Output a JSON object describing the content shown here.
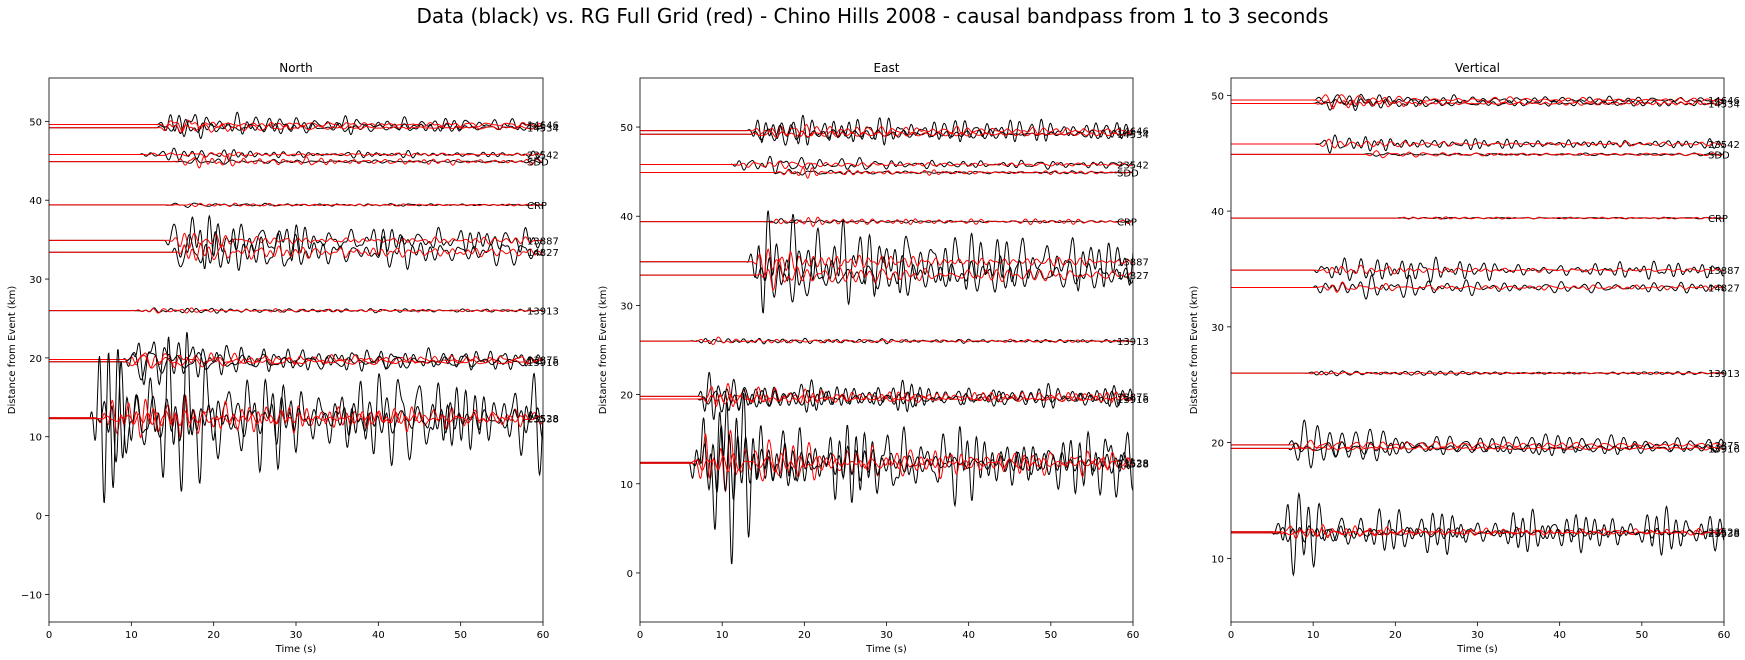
{
  "suptitle": "Data (black) vs. RG Full Grid (red) - Chino Hills 2008 - causal bandpass from 1 to 3 seconds",
  "colors": {
    "data": "#000000",
    "synthetic": "#ff0000",
    "axis": "#000000"
  },
  "chart_data": [
    {
      "type": "line",
      "title": "North",
      "xlabel": "Time (s)",
      "ylabel": "Distance from Event (km)",
      "xlim": [
        0,
        60
      ],
      "ylim": [
        -13.5,
        55.5
      ],
      "xticks": [
        0,
        10,
        20,
        30,
        40,
        50,
        60
      ],
      "yticks": [
        -10,
        0,
        10,
        20,
        30,
        40,
        50
      ],
      "traces": [
        {
          "label": "14646",
          "offset": 49.6,
          "onset": 13,
          "data_amp": 2.6,
          "syn_amp": 0.9,
          "seed": 1
        },
        {
          "label": "14534",
          "offset": 49.2,
          "onset": 13,
          "data_amp": 1.2,
          "syn_amp": 0.7,
          "seed": 2
        },
        {
          "label": "23542",
          "offset": 45.8,
          "onset": 11,
          "data_amp": 1.0,
          "syn_amp": 0.5,
          "seed": 3
        },
        {
          "label": "SDD",
          "offset": 44.9,
          "onset": 15,
          "data_amp": 0.5,
          "syn_amp": 0.9,
          "seed": 4
        },
        {
          "label": "CRP",
          "offset": 39.4,
          "onset": 14,
          "data_amp": 0.3,
          "syn_amp": 0.4,
          "seed": 5
        },
        {
          "label": "13887",
          "offset": 34.9,
          "onset": 14,
          "data_amp": 3.4,
          "syn_amp": 1.0,
          "seed": 6
        },
        {
          "label": "14827",
          "offset": 33.4,
          "onset": 15,
          "data_amp": 4.5,
          "syn_amp": 1.6,
          "seed": 7
        },
        {
          "label": "13913",
          "offset": 26.0,
          "onset": 10,
          "data_amp": 0.6,
          "syn_amp": 0.4,
          "seed": 8
        },
        {
          "label": "13875",
          "offset": 19.8,
          "onset": 9,
          "data_amp": 3.8,
          "syn_amp": 1.6,
          "seed": 9
        },
        {
          "label": "13916",
          "offset": 19.5,
          "onset": 9,
          "data_amp": 2.0,
          "syn_amp": 1.0,
          "seed": 10
        },
        {
          "label": "23528",
          "offset": 12.4,
          "onset": 5,
          "data_amp": 18.0,
          "syn_amp": 3.5,
          "seed": 11
        },
        {
          "label": "23538",
          "offset": 12.3,
          "onset": 6,
          "data_amp": 5.0,
          "syn_amp": 2.0,
          "seed": 12
        }
      ]
    },
    {
      "type": "line",
      "title": "East",
      "xlabel": "Time (s)",
      "ylabel": "Distance from Event (km)",
      "xlim": [
        0,
        60
      ],
      "ylim": [
        -5.5,
        55.5
      ],
      "xticks": [
        0,
        10,
        20,
        30,
        40,
        50,
        60
      ],
      "yticks": [
        0,
        10,
        20,
        30,
        40,
        50
      ],
      "traces": [
        {
          "label": "14646",
          "offset": 49.6,
          "onset": 13,
          "data_amp": 2.4,
          "syn_amp": 0.9,
          "seed": 21
        },
        {
          "label": "14534",
          "offset": 49.2,
          "onset": 13,
          "data_amp": 1.2,
          "syn_amp": 0.7,
          "seed": 22
        },
        {
          "label": "23542",
          "offset": 45.8,
          "onset": 11,
          "data_amp": 1.5,
          "syn_amp": 0.6,
          "seed": 23
        },
        {
          "label": "SDD",
          "offset": 44.9,
          "onset": 16,
          "data_amp": 0.4,
          "syn_amp": 0.5,
          "seed": 24
        },
        {
          "label": "CRP",
          "offset": 39.4,
          "onset": 15,
          "data_amp": 0.3,
          "syn_amp": 0.6,
          "seed": 25
        },
        {
          "label": "13887",
          "offset": 34.9,
          "onset": 13,
          "data_amp": 8.0,
          "syn_amp": 1.6,
          "seed": 26
        },
        {
          "label": "14827",
          "offset": 33.4,
          "onset": 14,
          "data_amp": 5.5,
          "syn_amp": 1.6,
          "seed": 27
        },
        {
          "label": "13913",
          "offset": 26.0,
          "onset": 6,
          "data_amp": 0.6,
          "syn_amp": 0.4,
          "seed": 28
        },
        {
          "label": "13875",
          "offset": 19.8,
          "onset": 7,
          "data_amp": 3.0,
          "syn_amp": 1.5,
          "seed": 29
        },
        {
          "label": "13916",
          "offset": 19.5,
          "onset": 7,
          "data_amp": 1.8,
          "syn_amp": 0.9,
          "seed": 30
        },
        {
          "label": "23528",
          "offset": 12.4,
          "onset": 6,
          "data_amp": 13.0,
          "syn_amp": 3.5,
          "seed": 31
        },
        {
          "label": "23538",
          "offset": 12.3,
          "onset": 6,
          "data_amp": 4.5,
          "syn_amp": 1.8,
          "seed": 32
        }
      ]
    },
    {
      "type": "line",
      "title": "Vertical",
      "xlabel": "Time (s)",
      "ylabel": "Distance from Event (km)",
      "xlim": [
        0,
        60
      ],
      "ylim": [
        4.5,
        51.5
      ],
      "xticks": [
        0,
        10,
        20,
        30,
        40,
        50,
        60
      ],
      "yticks": [
        10,
        20,
        30,
        40,
        50
      ],
      "traces": [
        {
          "label": "14646",
          "offset": 49.6,
          "onset": 10,
          "data_amp": 0.9,
          "syn_amp": 0.5,
          "seed": 41
        },
        {
          "label": "14534",
          "offset": 49.3,
          "onset": 10,
          "data_amp": 0.6,
          "syn_amp": 0.4,
          "seed": 42
        },
        {
          "label": "23542",
          "offset": 45.8,
          "onset": 10,
          "data_amp": 1.0,
          "syn_amp": 0.4,
          "seed": 43
        },
        {
          "label": "SDD",
          "offset": 44.9,
          "onset": 16,
          "data_amp": 0.2,
          "syn_amp": 0.3,
          "seed": 44
        },
        {
          "label": "CRP",
          "offset": 39.4,
          "onset": 20,
          "data_amp": 0.15,
          "syn_amp": 0.15,
          "seed": 45
        },
        {
          "label": "13887",
          "offset": 34.9,
          "onset": 10,
          "data_amp": 1.6,
          "syn_amp": 0.5,
          "seed": 46
        },
        {
          "label": "14827",
          "offset": 33.4,
          "onset": 10,
          "data_amp": 1.4,
          "syn_amp": 0.5,
          "seed": 47
        },
        {
          "label": "13913",
          "offset": 26.0,
          "onset": 9,
          "data_amp": 0.4,
          "syn_amp": 0.2,
          "seed": 48
        },
        {
          "label": "13875",
          "offset": 19.8,
          "onset": 7,
          "data_amp": 2.2,
          "syn_amp": 0.6,
          "seed": 49
        },
        {
          "label": "13916",
          "offset": 19.5,
          "onset": 7,
          "data_amp": 1.2,
          "syn_amp": 0.5,
          "seed": 50
        },
        {
          "label": "23528",
          "offset": 12.3,
          "onset": 5,
          "data_amp": 4.6,
          "syn_amp": 0.8,
          "seed": 51
        },
        {
          "label": "23538",
          "offset": 12.2,
          "onset": 5,
          "data_amp": 1.0,
          "syn_amp": 0.5,
          "seed": 52
        }
      ]
    }
  ]
}
